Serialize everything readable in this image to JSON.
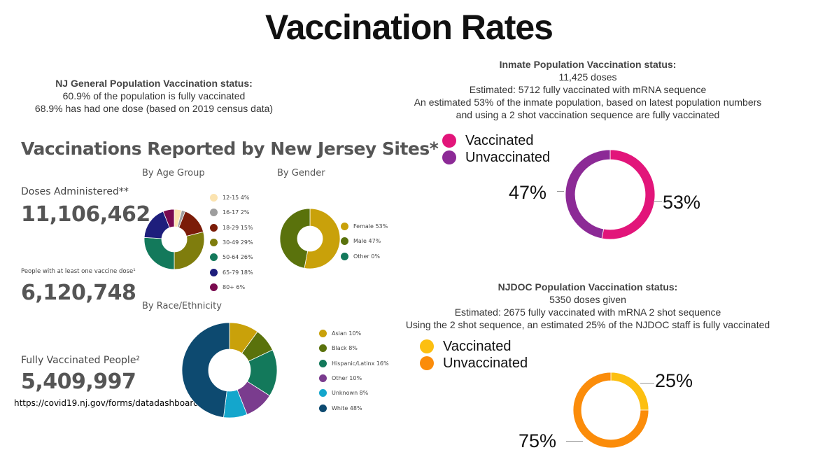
{
  "title": "Vaccination Rates",
  "nj_status": {
    "heading": "NJ General Population Vaccination status:",
    "line1": "60.9% of the population is fully vaccinated",
    "line2": "68.9% has had one dose (based on 2019 census data)"
  },
  "inmate_status": {
    "heading": "Inmate Population Vaccination status:",
    "line1": "11,425 doses",
    "line2": "Estimated: 5712 fully vaccinated with mRNA sequence",
    "line3": "An estimated 53%  of the inmate population, based on latest population numbers",
    "line4": "and using a 2 shot vaccination sequence are fully vaccinated"
  },
  "njdoc_status": {
    "heading": "NJDOC Population Vaccination status:",
    "line1": "5350 doses given",
    "line2": "Estimated: 2675 fully vaccinated with mRNA 2 shot sequence",
    "line3": "Using the 2 shot sequence, an estimated 25% of the NJDOC staff is fully vaccinated"
  },
  "dashboard": {
    "title": "Vaccinations Reported by New Jersey Sites*",
    "doses_label": "Doses Administered**",
    "doses_value": "11,106,462",
    "one_dose_label": "People with at least one vaccine dose¹",
    "one_dose_value": "6,120,748",
    "fully_label": "Fully Vaccinated People²",
    "fully_value": "5,409,997",
    "source": "https://covid19.nj.gov/forms/datadashboard"
  },
  "chart_data": [
    {
      "type": "pie",
      "title": "By Age Group",
      "categories": [
        "12-15",
        "16-17",
        "18-29",
        "30-49",
        "50-64",
        "65-79",
        "80+"
      ],
      "values": [
        4,
        2,
        15,
        29,
        26,
        18,
        6
      ],
      "labels": [
        "12-15  4%",
        "16-17  2%",
        "18-29  15%",
        "30-49  29%",
        "50-64  26%",
        "65-79  18%",
        "80+  6%"
      ],
      "colors": [
        "#fbe3b0",
        "#9e9e9e",
        "#7b1c08",
        "#7f7d0d",
        "#13795b",
        "#1e1e7c",
        "#7a0a4f"
      ]
    },
    {
      "type": "pie",
      "title": "By Gender",
      "categories": [
        "Female",
        "Male",
        "Other"
      ],
      "values": [
        53,
        47,
        0
      ],
      "labels": [
        "Female  53%",
        "Male  47%",
        "Other  0%"
      ],
      "colors": [
        "#c9a10a",
        "#5a720c",
        "#13795b"
      ]
    },
    {
      "type": "pie",
      "title": "By Race/Ethnicity",
      "categories": [
        "Asian",
        "Black",
        "Hispanic/Latinx",
        "Other",
        "Unknown",
        "White"
      ],
      "values": [
        10,
        8,
        16,
        10,
        8,
        48
      ],
      "labels": [
        "Asian  10%",
        "Black  8%",
        "Hispanic/Latinx  16%",
        "Other  10%",
        "Unknown  8%",
        "White  48%"
      ],
      "colors": [
        "#c9a10a",
        "#5a720c",
        "#13795b",
        "#7a3c8e",
        "#14a6cc",
        "#0d4a70"
      ]
    },
    {
      "type": "pie",
      "categories": [
        "Vaccinated",
        "Unvaccinated"
      ],
      "values": [
        53,
        47
      ],
      "labels": [
        "53%",
        "47%"
      ],
      "colors": [
        "#e2157a",
        "#8c2a96"
      ]
    },
    {
      "type": "pie",
      "categories": [
        "Vaccinated",
        "Unvaccinated"
      ],
      "values": [
        25,
        75
      ],
      "labels": [
        "25%",
        "75%"
      ],
      "colors": [
        "#fcbf11",
        "#fb8c0a"
      ]
    }
  ]
}
